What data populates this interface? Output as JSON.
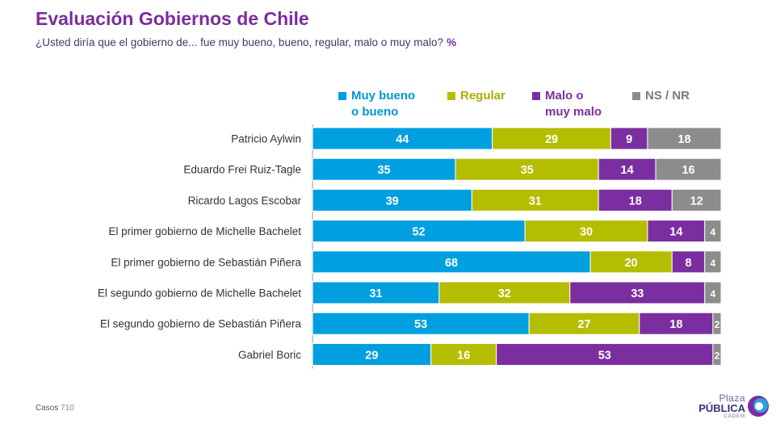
{
  "title": "Evaluación Gobiernos de Chile",
  "subtitle": "¿Usted diría que el gobierno de... fue muy bueno, bueno, regular, malo o muy malo?",
  "subtitle_unit": "%",
  "footer": {
    "cases_label": "Casos",
    "cases_value": "710"
  },
  "logo": {
    "top": "Plaza",
    "mid": "PÚBLICA",
    "bottom": "CADEM"
  },
  "chart_data": {
    "type": "bar",
    "orientation": "horizontal",
    "stacked": true,
    "title": "Evaluación Gobiernos de Chile",
    "xlabel": "",
    "ylabel": "",
    "xlim": [
      0,
      100
    ],
    "grid": false,
    "legend_position": "top",
    "categories": [
      "Patricio Aylwin",
      "Eduardo Frei Ruiz-Tagle",
      "Ricardo Lagos Escobar",
      "El primer gobierno de Michelle Bachelet",
      "El primer gobierno de Sebastián Piñera",
      "El segundo gobierno de Michelle Bachelet",
      "El segundo gobierno de Sebastián Piñera",
      "Gabriel Boric"
    ],
    "series": [
      {
        "name": "Muy bueno o bueno",
        "legend_lines": [
          "Muy bueno",
          "o bueno"
        ],
        "color": "#009fe0",
        "text_color": "#0097d6",
        "values": [
          44,
          35,
          39,
          52,
          68,
          31,
          53,
          29
        ]
      },
      {
        "name": "Regular",
        "legend_lines": [
          "Regular"
        ],
        "color": "#b5bd00",
        "text_color": "#a6ae00",
        "values": [
          29,
          35,
          31,
          30,
          20,
          32,
          27,
          16
        ]
      },
      {
        "name": "Malo o muy malo",
        "legend_lines": [
          "Malo o",
          "muy malo"
        ],
        "color": "#7b2ea0",
        "text_color": "#7b2ea0",
        "values": [
          9,
          14,
          18,
          14,
          8,
          33,
          18,
          53
        ]
      },
      {
        "name": "NS / NR",
        "legend_lines": [
          "NS / NR"
        ],
        "color": "#8c8c8c",
        "text_color": "#7a7a7a",
        "values": [
          18,
          16,
          12,
          4,
          4,
          4,
          2,
          2
        ]
      }
    ]
  }
}
